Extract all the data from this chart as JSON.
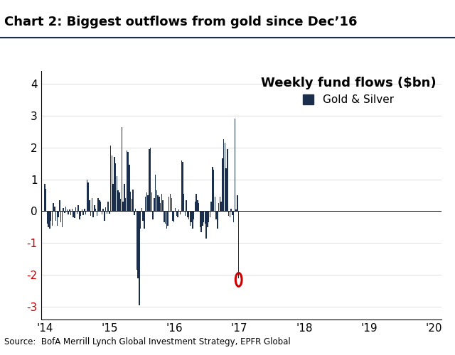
{
  "title": "Chart 2: Biggest outflows from gold since Dec’16",
  "legend_title": "Weekly fund flows ($bn)",
  "legend_label": "Gold & Silver",
  "source": "Source:  BofA Merrill Lynch Global Investment Strategy, EPFR Global",
  "bar_color": "#1b2e4b",
  "circle_color": "#cc0000",
  "neg_tick_color": "#cc0000",
  "ylim": [
    -3.4,
    4.4
  ],
  "yticks": [
    -3,
    -2,
    -1,
    0,
    1,
    2,
    3,
    4
  ],
  "xtick_labels": [
    "'14",
    "'15",
    "'16",
    "'17",
    "'18",
    "'19",
    "'20"
  ],
  "xtick_positions": [
    0.0,
    52.18,
    104.36,
    156.53,
    208.71,
    260.89,
    313.07
  ],
  "total_weeks": 322,
  "values": [
    0.85,
    0.7,
    -0.4,
    -0.5,
    -0.55,
    -0.3,
    -0.45,
    0.25,
    0.15,
    -0.3,
    -0.45,
    -0.2,
    0.35,
    -0.35,
    -0.5,
    0.1,
    -0.05,
    0.15,
    0.05,
    -0.1,
    0.05,
    -0.12,
    0.08,
    -0.18,
    -0.22,
    0.12,
    -0.08,
    0.18,
    -0.25,
    -0.15,
    0.05,
    -0.12,
    0.08,
    -0.1,
    1.0,
    0.9,
    0.35,
    -0.15,
    0.42,
    -0.2,
    0.18,
    0.08,
    -0.15,
    0.4,
    0.35,
    0.3,
    -0.1,
    0.08,
    -0.3,
    0.12,
    -0.08,
    0.3,
    -0.08,
    2.05,
    1.75,
    0.85,
    1.7,
    1.5,
    1.1,
    0.65,
    0.6,
    0.38,
    2.65,
    0.3,
    0.85,
    0.4,
    1.9,
    1.85,
    1.45,
    0.62,
    0.38,
    0.68,
    -0.12,
    0.08,
    -1.85,
    -2.1,
    -2.95,
    -0.55,
    0.1,
    -0.3,
    -0.55,
    0.45,
    0.6,
    0.5,
    1.95,
    2.0,
    0.6,
    -0.25,
    0.42,
    1.15,
    0.65,
    0.5,
    0.45,
    0.25,
    0.55,
    0.35,
    -0.35,
    -0.4,
    -0.55,
    -0.45,
    0.45,
    0.55,
    0.4,
    -0.3,
    -0.35,
    0.1,
    -0.15,
    -0.2,
    0.05,
    -0.1,
    1.6,
    1.55,
    0.55,
    -0.15,
    0.35,
    -0.2,
    -0.25,
    -0.45,
    -0.35,
    -0.55,
    -0.25,
    0.3,
    0.55,
    0.35,
    0.25,
    -0.5,
    -0.65,
    -0.45,
    -0.35,
    -0.4,
    -0.85,
    -0.5,
    -0.35,
    -0.2,
    0.3,
    1.4,
    1.3,
    0.45,
    -0.25,
    -0.55,
    0.25,
    0.45,
    0.3,
    1.65,
    2.25,
    2.15,
    1.35,
    1.95,
    -0.15,
    -0.2,
    0.08,
    -0.12,
    -0.35,
    2.9,
    0.05,
    0.5,
    -2.1
  ],
  "circle_bar_index": 156
}
